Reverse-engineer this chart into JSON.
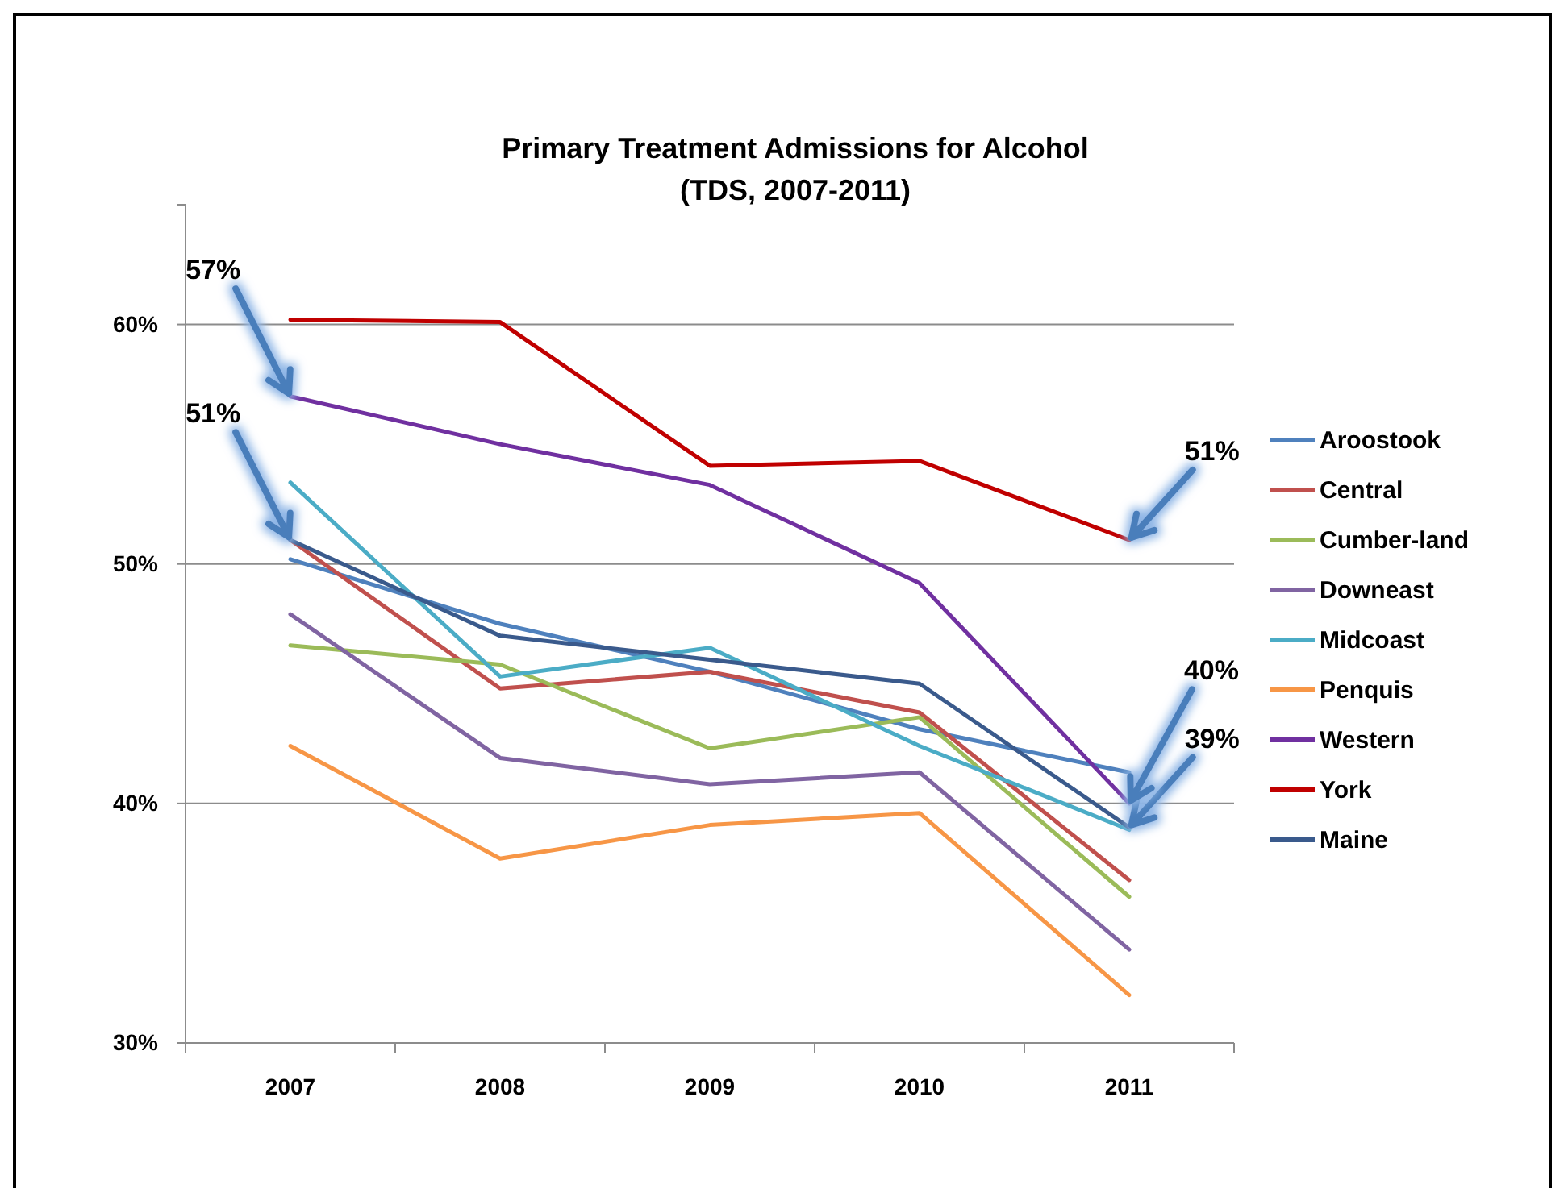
{
  "chart_data": {
    "type": "line",
    "title": "Primary Treatment Admissions for Alcohol",
    "subtitle": "(TDS, 2007-2011)",
    "categories": [
      "2007",
      "2008",
      "2009",
      "2010",
      "2011"
    ],
    "series": [
      {
        "name": "Aroostook",
        "color": "#4f81bd",
        "values": [
          50.2,
          47.5,
          45.5,
          43.1,
          41.3
        ]
      },
      {
        "name": "Central",
        "color": "#c0504d",
        "values": [
          51.0,
          44.8,
          45.5,
          43.8,
          36.8
        ]
      },
      {
        "name": "Cumber-land",
        "color": "#9bbb59",
        "values": [
          46.6,
          45.8,
          42.3,
          43.6,
          36.1
        ]
      },
      {
        "name": "Downeast",
        "color": "#8064a2",
        "values": [
          47.9,
          41.9,
          40.8,
          41.3,
          33.9
        ]
      },
      {
        "name": "Midcoast",
        "color": "#4bacc6",
        "values": [
          53.4,
          45.3,
          46.5,
          42.4,
          38.9
        ]
      },
      {
        "name": "Penquis",
        "color": "#f79646",
        "values": [
          42.4,
          37.7,
          39.1,
          39.6,
          32.0
        ]
      },
      {
        "name": "Western",
        "color": "#7030a0",
        "values": [
          57,
          55.0,
          53.3,
          49.2,
          40
        ]
      },
      {
        "name": "York",
        "color": "#c00000",
        "values": [
          60.2,
          60.1,
          54.1,
          54.3,
          51
        ]
      },
      {
        "name": "Maine",
        "color": "#3a5a8c",
        "values": [
          51,
          47.0,
          46.0,
          45.0,
          39
        ]
      }
    ],
    "ylim": [
      30,
      65
    ],
    "yticks": [
      {
        "value": 30,
        "label": "30%"
      },
      {
        "value": 40,
        "label": "40%"
      },
      {
        "value": 50,
        "label": "50%"
      },
      {
        "value": 60,
        "label": "60%"
      }
    ],
    "grid": "y",
    "legend": "right",
    "marker": "none",
    "line_style": "solid",
    "annotations": [
      {
        "text": "57%",
        "x": "2007",
        "y": 57
      },
      {
        "text": "51%",
        "x": "2007",
        "y": 51
      },
      {
        "text": "51%",
        "x": "2011",
        "y": 51
      },
      {
        "text": "40%",
        "x": "2011",
        "y": 40
      },
      {
        "text": "39%",
        "x": "2011",
        "y": 39
      }
    ]
  }
}
